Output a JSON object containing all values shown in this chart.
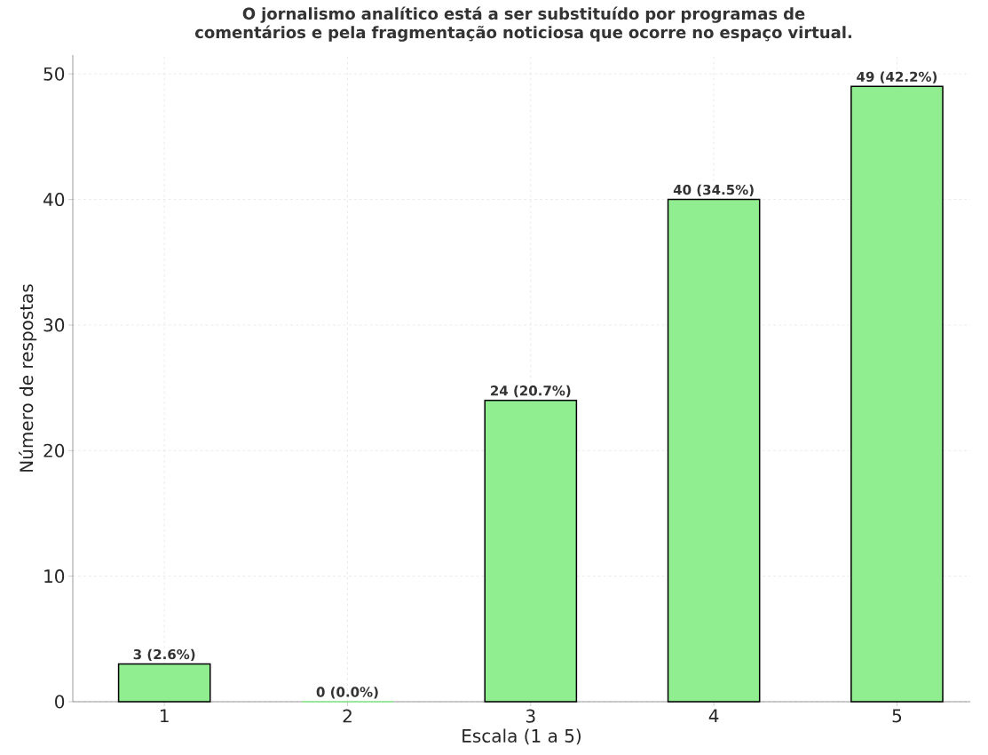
{
  "chart_data": {
    "type": "bar",
    "title": "O jornalismo analítico está a ser substituído por programas de comentários e pela fragmentação noticiosa que ocorre no espaço virtual.",
    "xlabel": "Escala (1 a 5)",
    "ylabel": "Número de respostas",
    "categories": [
      "1",
      "2",
      "3",
      "4",
      "5"
    ],
    "values": [
      3,
      0,
      24,
      40,
      49
    ],
    "value_labels": [
      "3 (2.6%)",
      "0 (0.0%)",
      "24 (20.7%)",
      "40 (34.5%)",
      "49 (42.2%)"
    ],
    "color": "#90ee90",
    "ylim": [
      0,
      51.5
    ],
    "yticks": [
      0,
      10,
      20,
      30,
      40,
      50
    ],
    "grid": true
  }
}
